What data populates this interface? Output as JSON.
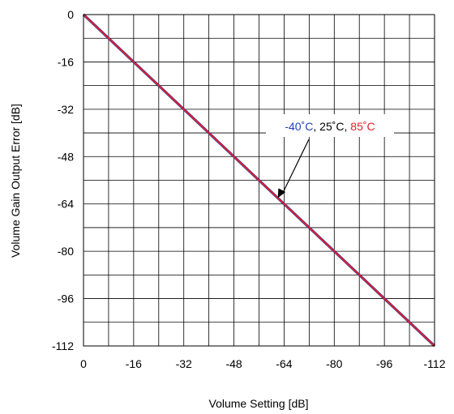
{
  "chart_data": {
    "type": "line",
    "xlabel": "Volume Setting [dB]",
    "ylabel": "Volume Gain Output Error [dB]",
    "xlim": [
      0,
      -112
    ],
    "ylim": [
      -112,
      0
    ],
    "x_ticks": [
      0,
      -16,
      -32,
      -48,
      -64,
      -80,
      -96,
      -112
    ],
    "y_ticks": [
      0,
      -16,
      -32,
      -48,
      -64,
      -80,
      -96,
      -112
    ],
    "x_tick_labels": [
      "0",
      "-16",
      "-32",
      "-48",
      "-64",
      "-80",
      "-96",
      "-112"
    ],
    "y_tick_labels": [
      "0",
      "-16",
      "-32",
      "-48",
      "-64",
      "-80",
      "-96",
      "-112"
    ],
    "grid": true,
    "series": [
      {
        "name": "-40˚C",
        "color": "#1f3fbf",
        "x": [
          0,
          -112
        ],
        "y": [
          0,
          -112
        ]
      },
      {
        "name": "25˚C",
        "color": "#000000",
        "x": [
          0,
          -112
        ],
        "y": [
          0,
          -112
        ]
      },
      {
        "name": "85˚C",
        "color": "#e0202a",
        "x": [
          0,
          -112
        ],
        "y": [
          0,
          -112
        ]
      }
    ],
    "annotation": {
      "parts": [
        {
          "text": "-40˚C",
          "color": "#1f3fbf"
        },
        {
          "text": ", 25˚C, ",
          "color": "#000000"
        },
        {
          "text": "85˚C",
          "color": "#e0202a"
        }
      ],
      "arrow_to": [
        -62,
        -62
      ]
    }
  }
}
